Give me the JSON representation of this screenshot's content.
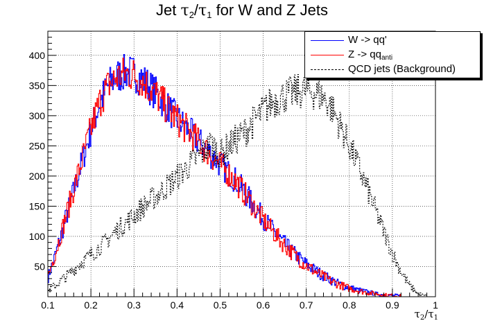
{
  "chart_data": {
    "type": "line",
    "title_prefix": "Jet ",
    "title_num": "τ",
    "title_num_sub": "2",
    "title_slash": "/",
    "title_den": "τ",
    "title_den_sub": "1",
    "title_suffix": " for W and Z Jets",
    "xlabel_num": "τ",
    "xlabel_num_sub": "2",
    "xlabel_slash": "/",
    "xlabel_den": "τ",
    "xlabel_den_sub": "1",
    "xlim": [
      0.1,
      1.0
    ],
    "ylim": [
      0,
      440
    ],
    "x_ticks": [
      0.1,
      0.2,
      0.3,
      0.4,
      0.5,
      0.6,
      0.7,
      0.8,
      0.9,
      1.0
    ],
    "x_tick_labels": [
      "0.1",
      "0.2",
      "0.3",
      "0.4",
      "0.5",
      "0.6",
      "0.7",
      "0.8",
      "0.9",
      "1"
    ],
    "y_ticks": [
      50,
      100,
      150,
      200,
      250,
      300,
      350,
      400
    ],
    "y_tick_labels": [
      "50",
      "100",
      "150",
      "200",
      "250",
      "300",
      "350",
      "400"
    ],
    "grid": true,
    "legend_position": "top-right",
    "series": [
      {
        "name": "W -> qq'",
        "color": "#0000ff",
        "style": "solid",
        "x": [
          0.1,
          0.12,
          0.14,
          0.16,
          0.18,
          0.2,
          0.22,
          0.24,
          0.26,
          0.28,
          0.3,
          0.32,
          0.34,
          0.36,
          0.38,
          0.4,
          0.42,
          0.44,
          0.46,
          0.48,
          0.5,
          0.52,
          0.54,
          0.56,
          0.58,
          0.6,
          0.62,
          0.64,
          0.66,
          0.68,
          0.7,
          0.72,
          0.74,
          0.76,
          0.78,
          0.8,
          0.82,
          0.84,
          0.86,
          0.88,
          0.9,
          0.92
        ],
        "y": [
          30,
          75,
          125,
          175,
          225,
          275,
          320,
          350,
          365,
          372,
          370,
          360,
          345,
          330,
          312,
          295,
          280,
          265,
          250,
          235,
          220,
          205,
          190,
          170,
          150,
          130,
          112,
          95,
          80,
          66,
          54,
          44,
          35,
          27,
          20,
          15,
          11,
          8,
          5,
          3,
          2,
          1
        ]
      },
      {
        "name": "Z -> qq",
        "name_sub": "anti",
        "color": "#ff0000",
        "style": "solid",
        "x": [
          0.1,
          0.12,
          0.14,
          0.16,
          0.18,
          0.2,
          0.22,
          0.24,
          0.26,
          0.28,
          0.3,
          0.32,
          0.34,
          0.36,
          0.38,
          0.4,
          0.42,
          0.44,
          0.46,
          0.48,
          0.5,
          0.52,
          0.54,
          0.56,
          0.58,
          0.6,
          0.62,
          0.64,
          0.66,
          0.68,
          0.7,
          0.72,
          0.74,
          0.76,
          0.78,
          0.8,
          0.82,
          0.84,
          0.86,
          0.88,
          0.9,
          0.92
        ],
        "y": [
          32,
          78,
          128,
          178,
          228,
          278,
          322,
          350,
          364,
          370,
          368,
          358,
          344,
          328,
          310,
          294,
          279,
          264,
          249,
          234,
          219,
          204,
          188,
          168,
          148,
          128,
          110,
          93,
          78,
          64,
          52,
          42,
          33,
          25,
          19,
          14,
          10,
          7,
          5,
          3,
          2,
          1
        ]
      },
      {
        "name": "QCD jets (Background)",
        "color": "#000000",
        "style": "dashed",
        "x": [
          0.1,
          0.12,
          0.14,
          0.16,
          0.18,
          0.2,
          0.22,
          0.24,
          0.26,
          0.28,
          0.3,
          0.32,
          0.34,
          0.36,
          0.38,
          0.4,
          0.42,
          0.44,
          0.46,
          0.48,
          0.5,
          0.52,
          0.54,
          0.56,
          0.58,
          0.6,
          0.62,
          0.64,
          0.66,
          0.68,
          0.7,
          0.72,
          0.74,
          0.76,
          0.78,
          0.8,
          0.82,
          0.84,
          0.86,
          0.88,
          0.9,
          0.92,
          0.94,
          0.96,
          0.98
        ],
        "y": [
          10,
          20,
          32,
          45,
          58,
          70,
          82,
          95,
          110,
          122,
          135,
          148,
          160,
          172,
          185,
          198,
          212,
          226,
          240,
          254,
          235,
          250,
          262,
          275,
          292,
          308,
          322,
          330,
          336,
          340,
          342,
          338,
          330,
          312,
          282,
          250,
          218,
          182,
          145,
          108,
          72,
          42,
          18,
          5,
          0
        ]
      }
    ]
  }
}
